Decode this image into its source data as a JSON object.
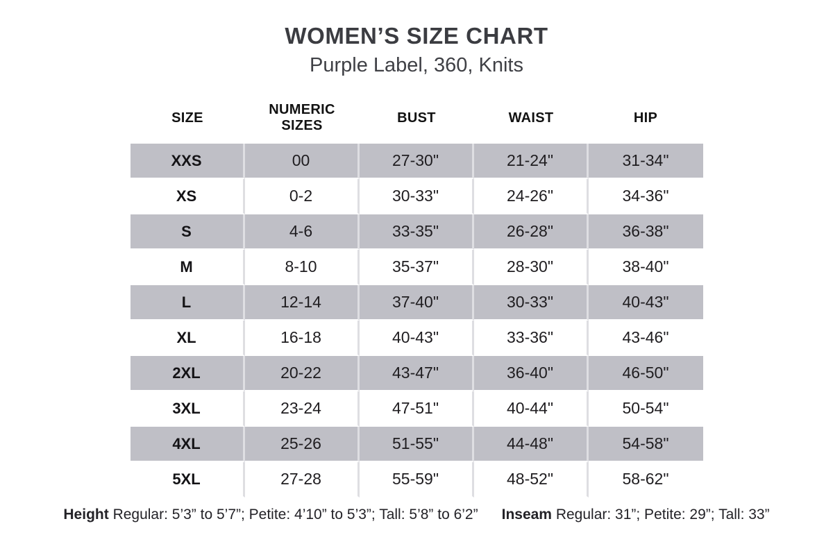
{
  "header": {
    "title": "WOMEN’S SIZE CHART",
    "subtitle": "Purple Label, 360, Knits"
  },
  "table": {
    "columns": [
      "SIZE",
      "NUMERIC SIZES",
      "BUST",
      "WAIST",
      "HIP"
    ],
    "rows": [
      [
        "XXS",
        "00",
        "27-30\"",
        "21-24\"",
        "31-34\""
      ],
      [
        "XS",
        "0-2",
        "30-33\"",
        "24-26\"",
        "34-36\""
      ],
      [
        "S",
        "4-6",
        "33-35\"",
        "26-28\"",
        "36-38\""
      ],
      [
        "M",
        "8-10",
        "35-37\"",
        "28-30\"",
        "38-40\""
      ],
      [
        "L",
        "12-14",
        "37-40\"",
        "30-33\"",
        "40-43\""
      ],
      [
        "XL",
        "16-18",
        "40-43\"",
        "33-36\"",
        "43-46\""
      ],
      [
        "2XL",
        "20-22",
        "43-47\"",
        "36-40\"",
        "46-50\""
      ],
      [
        "3XL",
        "23-24",
        "47-51\"",
        "40-44\"",
        "50-54\""
      ],
      [
        "4XL",
        "25-26",
        "51-55\"",
        "44-48\"",
        "54-58\""
      ],
      [
        "5XL",
        "27-28",
        "55-59\"",
        "48-52\"",
        "58-62\""
      ]
    ]
  },
  "footer": {
    "height_label": "Height",
    "height_text": "Regular: 5’3” to 5’7”; Petite: 4’10” to 5’3”; Tall: 5’8” to 6’2”",
    "inseam_label": "Inseam",
    "inseam_text": "Regular: 31”;  Petite: 29”; Tall: 33”"
  },
  "colors": {
    "row_shaded": "#bfbfc6",
    "column_separator": "#dedee2",
    "title_text": "#3b3c41",
    "table_text": "#1f1d20"
  }
}
